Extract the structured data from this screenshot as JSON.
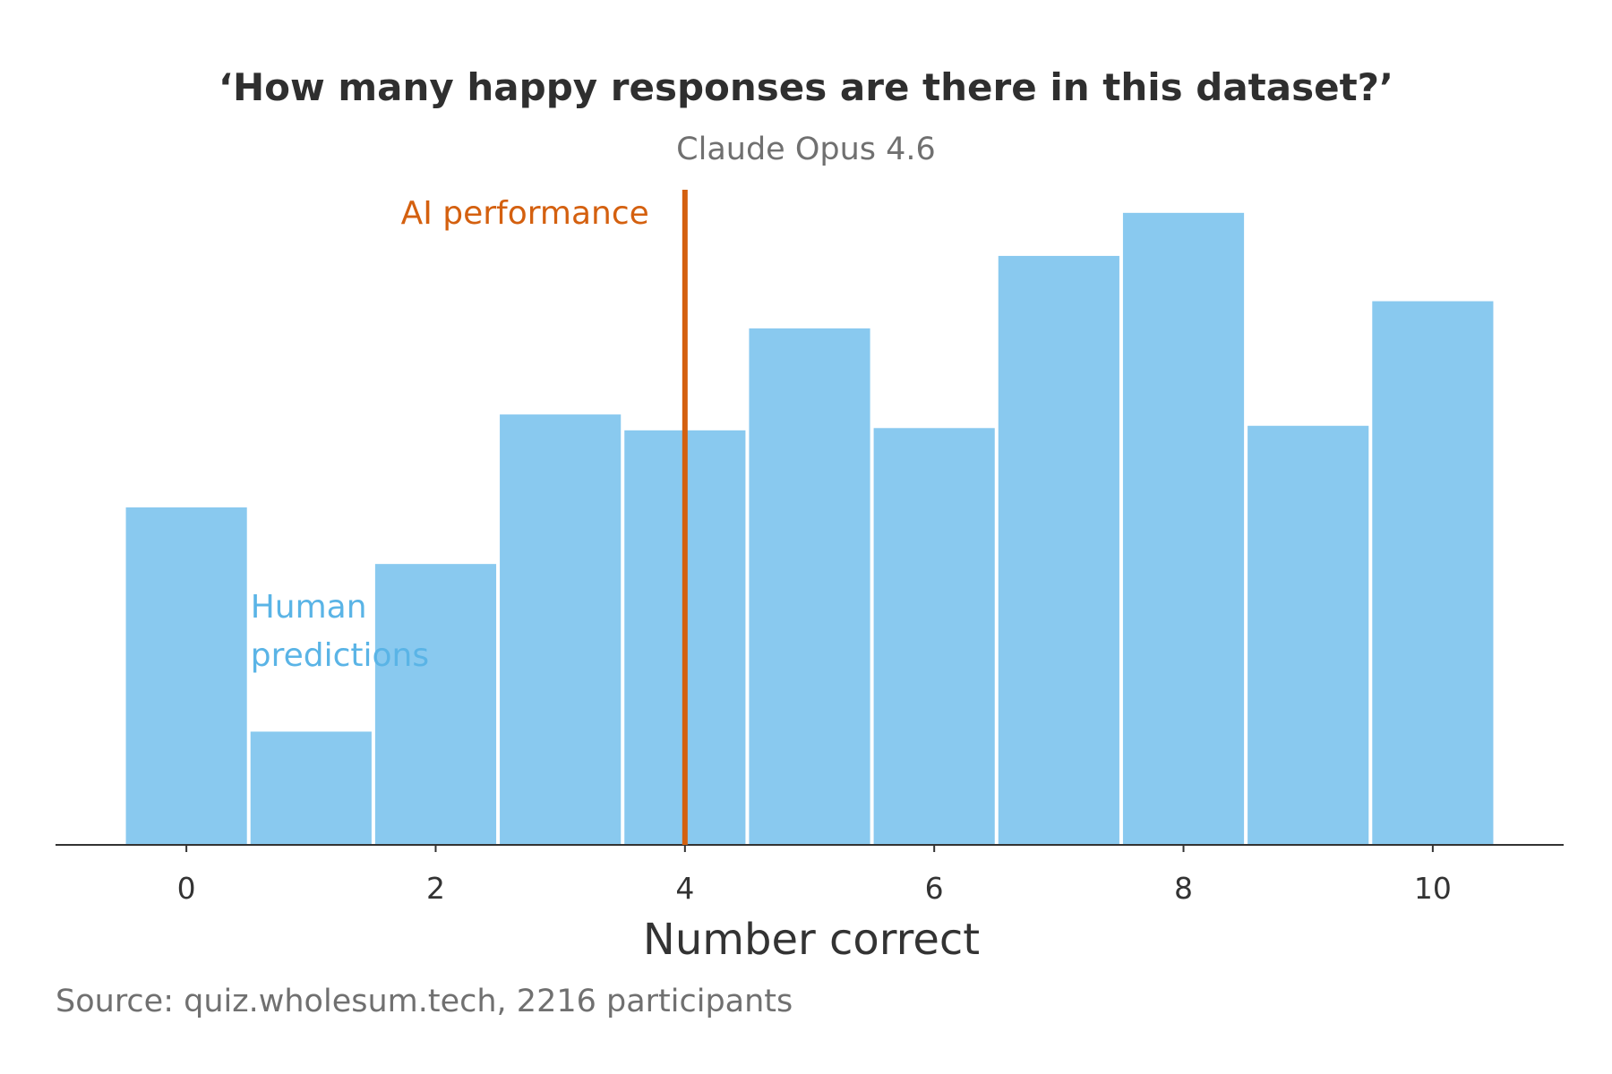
{
  "chart_data": {
    "type": "bar",
    "title": "‘How many happy responses are there in this dataset?’",
    "subtitle": "Claude Opus 4.6",
    "xlabel": "Number correct",
    "ylabel": "",
    "categories": [
      "0",
      "1",
      "2",
      "3",
      "4",
      "5",
      "6",
      "7",
      "8",
      "9",
      "10"
    ],
    "values": [
      149,
      50,
      124,
      190,
      183,
      228,
      184,
      260,
      279,
      185,
      240
    ],
    "ylim": [
      0,
      290
    ],
    "xlim": [
      -1.05,
      11.05
    ],
    "x_ticks": [
      "0",
      "2",
      "4",
      "6",
      "8",
      "10"
    ],
    "grid": false,
    "legend": "none",
    "series": [
      {
        "name": "Human predictions",
        "values": [
          149,
          50,
          124,
          190,
          183,
          228,
          184,
          260,
          279,
          185,
          240
        ]
      }
    ],
    "ai_performance": {
      "label": "AI performance",
      "x": 4
    },
    "source": "Source: quiz.wholesum.tech, 2216 participants",
    "colors": {
      "bars": "#89c9ef",
      "human_label": "#5ab4e6",
      "ai_line": "#d4600f",
      "axis": "#333333"
    }
  }
}
